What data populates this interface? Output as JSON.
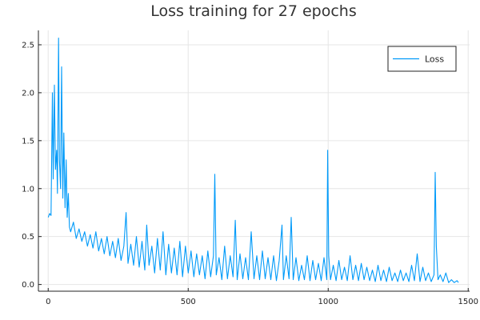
{
  "chart_data": {
    "type": "line",
    "title": "Loss training for 27 epochs",
    "xlabel": "",
    "ylabel": "",
    "xlim": [
      -35,
      1505
    ],
    "ylim": [
      -0.07,
      2.65
    ],
    "x_ticks": [
      0,
      500,
      1000,
      1500
    ],
    "y_ticks": [
      0.0,
      0.5,
      1.0,
      1.5,
      2.0,
      2.5
    ],
    "grid": true,
    "legend_position": "top-right",
    "series_color": "#009af9",
    "series": [
      {
        "name": "Loss",
        "points": [
          [
            0,
            0.7
          ],
          [
            5,
            0.74
          ],
          [
            10,
            0.72
          ],
          [
            15,
            2.0
          ],
          [
            18,
            1.1
          ],
          [
            22,
            2.08
          ],
          [
            26,
            1.2
          ],
          [
            30,
            1.4
          ],
          [
            33,
            0.95
          ],
          [
            37,
            2.57
          ],
          [
            40,
            1.3
          ],
          [
            44,
            1.0
          ],
          [
            48,
            2.27
          ],
          [
            52,
            0.9
          ],
          [
            56,
            1.58
          ],
          [
            60,
            0.8
          ],
          [
            64,
            1.3
          ],
          [
            68,
            0.7
          ],
          [
            72,
            0.95
          ],
          [
            76,
            0.6
          ],
          [
            80,
            0.55
          ],
          [
            90,
            0.65
          ],
          [
            100,
            0.48
          ],
          [
            110,
            0.58
          ],
          [
            120,
            0.45
          ],
          [
            130,
            0.55
          ],
          [
            140,
            0.4
          ],
          [
            150,
            0.52
          ],
          [
            160,
            0.38
          ],
          [
            170,
            0.55
          ],
          [
            180,
            0.35
          ],
          [
            190,
            0.48
          ],
          [
            200,
            0.32
          ],
          [
            210,
            0.5
          ],
          [
            220,
            0.3
          ],
          [
            230,
            0.45
          ],
          [
            240,
            0.28
          ],
          [
            250,
            0.48
          ],
          [
            260,
            0.25
          ],
          [
            270,
            0.4
          ],
          [
            278,
            0.75
          ],
          [
            285,
            0.22
          ],
          [
            295,
            0.42
          ],
          [
            305,
            0.2
          ],
          [
            315,
            0.5
          ],
          [
            325,
            0.18
          ],
          [
            335,
            0.45
          ],
          [
            345,
            0.15
          ],
          [
            352,
            0.62
          ],
          [
            360,
            0.2
          ],
          [
            370,
            0.4
          ],
          [
            380,
            0.12
          ],
          [
            390,
            0.48
          ],
          [
            400,
            0.15
          ],
          [
            410,
            0.55
          ],
          [
            420,
            0.1
          ],
          [
            430,
            0.42
          ],
          [
            440,
            0.12
          ],
          [
            450,
            0.38
          ],
          [
            460,
            0.1
          ],
          [
            470,
            0.45
          ],
          [
            480,
            0.08
          ],
          [
            490,
            0.4
          ],
          [
            500,
            0.12
          ],
          [
            510,
            0.35
          ],
          [
            520,
            0.08
          ],
          [
            530,
            0.32
          ],
          [
            540,
            0.1
          ],
          [
            550,
            0.3
          ],
          [
            560,
            0.06
          ],
          [
            570,
            0.35
          ],
          [
            580,
            0.08
          ],
          [
            590,
            0.3
          ],
          [
            595,
            1.15
          ],
          [
            600,
            0.1
          ],
          [
            610,
            0.28
          ],
          [
            620,
            0.05
          ],
          [
            630,
            0.4
          ],
          [
            640,
            0.06
          ],
          [
            650,
            0.3
          ],
          [
            660,
            0.08
          ],
          [
            668,
            0.67
          ],
          [
            675,
            0.05
          ],
          [
            685,
            0.32
          ],
          [
            695,
            0.06
          ],
          [
            705,
            0.28
          ],
          [
            715,
            0.05
          ],
          [
            725,
            0.55
          ],
          [
            735,
            0.06
          ],
          [
            745,
            0.3
          ],
          [
            755,
            0.05
          ],
          [
            765,
            0.35
          ],
          [
            775,
            0.06
          ],
          [
            785,
            0.28
          ],
          [
            795,
            0.05
          ],
          [
            805,
            0.3
          ],
          [
            815,
            0.04
          ],
          [
            825,
            0.25
          ],
          [
            835,
            0.62
          ],
          [
            840,
            0.05
          ],
          [
            850,
            0.3
          ],
          [
            860,
            0.06
          ],
          [
            868,
            0.7
          ],
          [
            875,
            0.05
          ],
          [
            885,
            0.28
          ],
          [
            895,
            0.04
          ],
          [
            905,
            0.2
          ],
          [
            915,
            0.05
          ],
          [
            925,
            0.3
          ],
          [
            935,
            0.04
          ],
          [
            945,
            0.25
          ],
          [
            955,
            0.05
          ],
          [
            965,
            0.22
          ],
          [
            975,
            0.04
          ],
          [
            985,
            0.28
          ],
          [
            995,
            0.05
          ],
          [
            998,
            1.4
          ],
          [
            1002,
            0.3
          ],
          [
            1008,
            0.05
          ],
          [
            1018,
            0.2
          ],
          [
            1028,
            0.04
          ],
          [
            1038,
            0.25
          ],
          [
            1048,
            0.05
          ],
          [
            1058,
            0.18
          ],
          [
            1068,
            0.04
          ],
          [
            1078,
            0.3
          ],
          [
            1088,
            0.05
          ],
          [
            1098,
            0.2
          ],
          [
            1108,
            0.04
          ],
          [
            1118,
            0.22
          ],
          [
            1128,
            0.05
          ],
          [
            1138,
            0.18
          ],
          [
            1148,
            0.04
          ],
          [
            1158,
            0.15
          ],
          [
            1168,
            0.03
          ],
          [
            1178,
            0.2
          ],
          [
            1188,
            0.04
          ],
          [
            1198,
            0.15
          ],
          [
            1208,
            0.03
          ],
          [
            1218,
            0.18
          ],
          [
            1228,
            0.04
          ],
          [
            1238,
            0.12
          ],
          [
            1248,
            0.03
          ],
          [
            1258,
            0.15
          ],
          [
            1268,
            0.04
          ],
          [
            1278,
            0.12
          ],
          [
            1288,
            0.03
          ],
          [
            1298,
            0.2
          ],
          [
            1308,
            0.04
          ],
          [
            1318,
            0.32
          ],
          [
            1328,
            0.03
          ],
          [
            1338,
            0.18
          ],
          [
            1348,
            0.04
          ],
          [
            1358,
            0.12
          ],
          [
            1368,
            0.03
          ],
          [
            1378,
            0.1
          ],
          [
            1382,
            1.17
          ],
          [
            1386,
            0.4
          ],
          [
            1392,
            0.05
          ],
          [
            1400,
            0.1
          ],
          [
            1410,
            0.03
          ],
          [
            1420,
            0.12
          ],
          [
            1430,
            0.02
          ],
          [
            1440,
            0.05
          ],
          [
            1450,
            0.02
          ],
          [
            1460,
            0.04
          ],
          [
            1465,
            0.02
          ]
        ]
      }
    ]
  }
}
